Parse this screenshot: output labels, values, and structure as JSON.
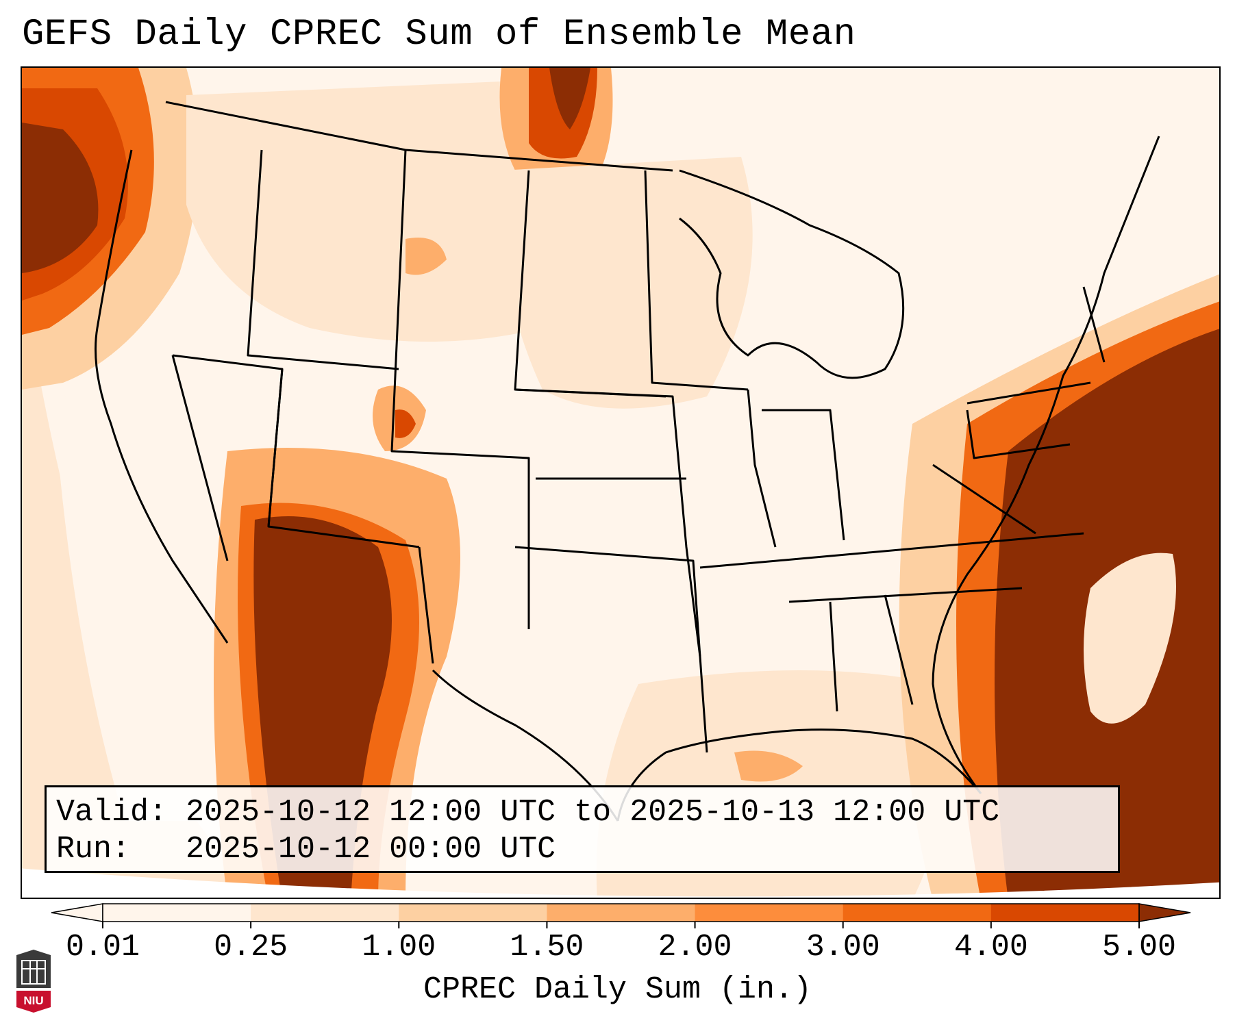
{
  "title": "GEFS Daily CPREC Sum of Ensemble Mean",
  "info": {
    "valid_line": "Valid: 2025-10-12 12:00 UTC to 2025-10-13 12:00 UTC",
    "run_line": "Run:   2025-10-12 00:00 UTC"
  },
  "colorbar": {
    "label": "CPREC Daily Sum (in.)",
    "ticks": [
      "0.01",
      "0.25",
      "1.00",
      "1.50",
      "2.00",
      "3.00",
      "4.00",
      "5.00"
    ],
    "colors": [
      "#fff5eb",
      "#fee6ce",
      "#fdd0a2",
      "#fdae6b",
      "#fd8d3c",
      "#f16913",
      "#d94801",
      "#8c2d04"
    ],
    "extend": "both"
  },
  "logo": {
    "text": "NIU",
    "color": "#c8102e"
  },
  "precip_colors": {
    "c1": "#fff5eb",
    "c2": "#fee6ce",
    "c3": "#fdd0a2",
    "c4": "#fdae6b",
    "c5": "#fd8d3c",
    "c6": "#f16913",
    "c7": "#d94801",
    "c8": "#8c2d04"
  }
}
